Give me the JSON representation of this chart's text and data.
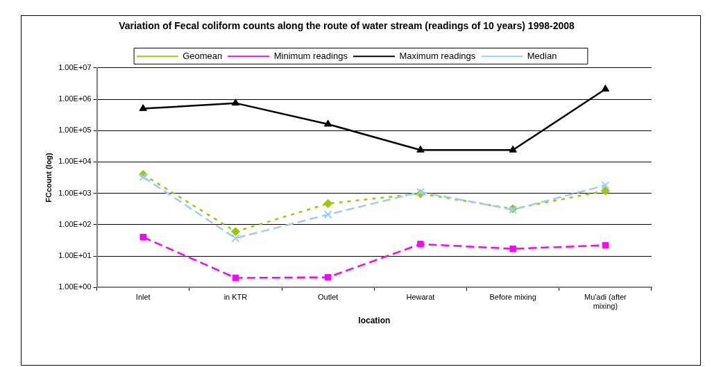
{
  "chart_data": {
    "type": "line",
    "title": "Variation of Fecal coliform counts along the route of water stream (readings of 10 years) 1998-2008",
    "xlabel": "location",
    "ylabel": "FCcount (log)",
    "categories": [
      "Inlet",
      "in KTR",
      "Outlet",
      "Hewarat",
      "Before mixing",
      "Mu'adi (after mixing)"
    ],
    "series": [
      {
        "name": "Geomean",
        "color": "#99cc00",
        "marker": "diamond",
        "line_style": "dotted",
        "values": [
          4000,
          60,
          470,
          980,
          320,
          1200
        ]
      },
      {
        "name": "Minimum readings",
        "color": "#ff00ff",
        "marker": "square",
        "line_style": "dashed",
        "values": [
          40,
          2,
          2.1,
          24,
          17,
          22
        ]
      },
      {
        "name": "Maximum readings",
        "color": "#000000",
        "marker": "triangle",
        "line_style": "solid",
        "values": [
          500000,
          750000,
          160000,
          24000,
          24000,
          2100000
        ]
      },
      {
        "name": "Median",
        "color": "#99ccff",
        "marker": "cross",
        "line_style": "dashed",
        "values": [
          3300,
          37,
          210,
          1100,
          300,
          1800
        ]
      }
    ],
    "log": "y",
    "ylim": [
      1,
      10000000
    ],
    "yticks": [
      {
        "value": 1,
        "label": "1.00E+00"
      },
      {
        "value": 10,
        "label": "1.00E+01"
      },
      {
        "value": 100,
        "label": "1.00E+02"
      },
      {
        "value": 1000,
        "label": "1.00E+03"
      },
      {
        "value": 10000,
        "label": "1.00E+04"
      },
      {
        "value": 100000,
        "label": "1.00E+05"
      },
      {
        "value": 1000000,
        "label": "1.00E+06"
      },
      {
        "value": 10000000,
        "label": "1.00E+07"
      }
    ],
    "grid": "y",
    "legend": "top"
  }
}
